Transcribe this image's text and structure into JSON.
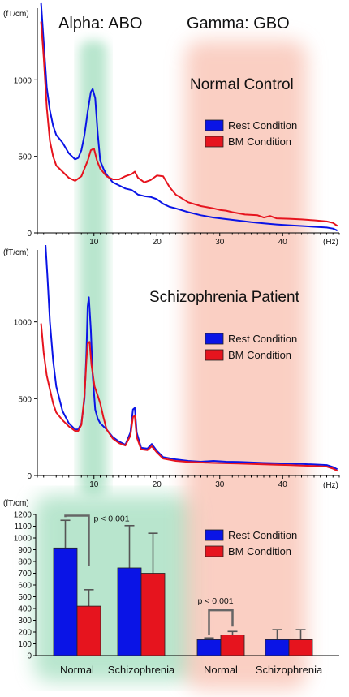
{
  "bands": {
    "alpha_label": "Alpha: ABO",
    "gamma_label": "Gamma: GBO",
    "alpha_color": "#7fd1a6",
    "gamma_color": "#f6a893",
    "alpha_hz": [
      7,
      11
    ],
    "gamma_hz": [
      24,
      45
    ]
  },
  "colors": {
    "rest": "#0a14e6",
    "bm": "#e6141e"
  },
  "chart_data": [
    {
      "type": "line",
      "title": "Normal Control",
      "ylabel": "(fT/cm)",
      "xlabel": "(Hz)",
      "xlim": [
        1,
        49
      ],
      "ylim": [
        0,
        1500
      ],
      "yticks": [
        0,
        500,
        1000
      ],
      "xticks": [
        10,
        20,
        30,
        40
      ],
      "legend": [
        "Rest Condition",
        "BM Condition"
      ],
      "legend_position": "right",
      "series": [
        {
          "name": "Rest Condition",
          "color": "#0a14e6",
          "points": [
            [
              1.6,
              1500
            ],
            [
              2,
              1250
            ],
            [
              2.5,
              950
            ],
            [
              3,
              800
            ],
            [
              3.5,
              700
            ],
            [
              4,
              640
            ],
            [
              5,
              590
            ],
            [
              6,
              520
            ],
            [
              7,
              480
            ],
            [
              7.5,
              490
            ],
            [
              8,
              540
            ],
            [
              8.5,
              640
            ],
            [
              9,
              790
            ],
            [
              9.5,
              920
            ],
            [
              9.8,
              940
            ],
            [
              10.2,
              880
            ],
            [
              10.6,
              650
            ],
            [
              11,
              470
            ],
            [
              11.5,
              420
            ],
            [
              12,
              380
            ],
            [
              13,
              330
            ],
            [
              14,
              310
            ],
            [
              15,
              290
            ],
            [
              16,
              280
            ],
            [
              17,
              250
            ],
            [
              18,
              240
            ],
            [
              19,
              235
            ],
            [
              20,
              220
            ],
            [
              21,
              190
            ],
            [
              22,
              170
            ],
            [
              23,
              160
            ],
            [
              25,
              135
            ],
            [
              27,
              115
            ],
            [
              29,
              100
            ],
            [
              31,
              90
            ],
            [
              33,
              80
            ],
            [
              35,
              70
            ],
            [
              37,
              62
            ],
            [
              39,
              55
            ],
            [
              41,
              50
            ],
            [
              43,
              45
            ],
            [
              45,
              40
            ],
            [
              47,
              35
            ],
            [
              48,
              28
            ],
            [
              48.7,
              15
            ]
          ]
        },
        {
          "name": "BM Condition",
          "color": "#e6141e",
          "points": [
            [
              1.6,
              1380
            ],
            [
              2,
              1150
            ],
            [
              2.5,
              820
            ],
            [
              3,
              600
            ],
            [
              3.5,
              500
            ],
            [
              4,
              440
            ],
            [
              5,
              400
            ],
            [
              6,
              360
            ],
            [
              7,
              340
            ],
            [
              8,
              370
            ],
            [
              8.5,
              420
            ],
            [
              9,
              470
            ],
            [
              9.5,
              540
            ],
            [
              10,
              550
            ],
            [
              10.5,
              470
            ],
            [
              11,
              420
            ],
            [
              12,
              370
            ],
            [
              13,
              350
            ],
            [
              14,
              350
            ],
            [
              15,
              370
            ],
            [
              16,
              385
            ],
            [
              16.5,
              400
            ],
            [
              17,
              360
            ],
            [
              18,
              330
            ],
            [
              19,
              345
            ],
            [
              20,
              375
            ],
            [
              21,
              370
            ],
            [
              22,
              300
            ],
            [
              23,
              250
            ],
            [
              25,
              200
            ],
            [
              27,
              175
            ],
            [
              29,
              160
            ],
            [
              30,
              150
            ],
            [
              31,
              145
            ],
            [
              32,
              135
            ],
            [
              34,
              120
            ],
            [
              36,
              115
            ],
            [
              37,
              100
            ],
            [
              38,
              110
            ],
            [
              39,
              95
            ],
            [
              41,
              92
            ],
            [
              43,
              88
            ],
            [
              45,
              82
            ],
            [
              47,
              75
            ],
            [
              48,
              65
            ],
            [
              48.7,
              45
            ]
          ]
        }
      ]
    },
    {
      "type": "line",
      "title": "Schizophrenia Patient",
      "ylabel": "(fT/cm)",
      "xlabel": "(Hz)",
      "xlim": [
        1,
        49
      ],
      "ylim": [
        0,
        1500
      ],
      "yticks": [
        0,
        500,
        1000
      ],
      "xticks": [
        10,
        20,
        30,
        40
      ],
      "legend": [
        "Rest Condition",
        "BM Condition"
      ],
      "legend_position": "right",
      "series": [
        {
          "name": "Rest Condition",
          "color": "#0a14e6",
          "points": [
            [
              2.3,
              1500
            ],
            [
              2.6,
              1300
            ],
            [
              3,
              1000
            ],
            [
              3.5,
              750
            ],
            [
              4,
              580
            ],
            [
              5,
              420
            ],
            [
              6,
              340
            ],
            [
              7,
              300
            ],
            [
              7.5,
              300
            ],
            [
              8,
              340
            ],
            [
              8.5,
              500
            ],
            [
              8.8,
              800
            ],
            [
              9,
              1100
            ],
            [
              9.2,
              1160
            ],
            [
              9.5,
              950
            ],
            [
              9.8,
              650
            ],
            [
              10.2,
              430
            ],
            [
              10.6,
              370
            ],
            [
              11,
              340
            ],
            [
              12,
              300
            ],
            [
              13,
              250
            ],
            [
              14,
              220
            ],
            [
              15,
              200
            ],
            [
              15.8,
              280
            ],
            [
              16.2,
              430
            ],
            [
              16.5,
              440
            ],
            [
              16.8,
              280
            ],
            [
              17.5,
              180
            ],
            [
              18.5,
              175
            ],
            [
              19.2,
              205
            ],
            [
              20,
              160
            ],
            [
              21,
              120
            ],
            [
              23,
              105
            ],
            [
              25,
              95
            ],
            [
              27,
              90
            ],
            [
              29,
              95
            ],
            [
              31,
              90
            ],
            [
              33,
              88
            ],
            [
              35,
              85
            ],
            [
              37,
              82
            ],
            [
              39,
              80
            ],
            [
              41,
              78
            ],
            [
              43,
              75
            ],
            [
              45,
              72
            ],
            [
              47,
              68
            ],
            [
              48,
              55
            ],
            [
              48.7,
              40
            ]
          ]
        },
        {
          "name": "BM Condition",
          "color": "#e6141e",
          "points": [
            [
              1.6,
              990
            ],
            [
              2,
              800
            ],
            [
              2.5,
              650
            ],
            [
              3,
              560
            ],
            [
              3.5,
              470
            ],
            [
              4,
              410
            ],
            [
              5,
              360
            ],
            [
              6,
              320
            ],
            [
              7,
              290
            ],
            [
              7.5,
              290
            ],
            [
              8,
              330
            ],
            [
              8.5,
              520
            ],
            [
              8.8,
              750
            ],
            [
              9,
              860
            ],
            [
              9.3,
              870
            ],
            [
              9.6,
              720
            ],
            [
              10.1,
              580
            ],
            [
              10.6,
              520
            ],
            [
              11,
              470
            ],
            [
              11.5,
              380
            ],
            [
              12,
              300
            ],
            [
              13,
              240
            ],
            [
              14,
              210
            ],
            [
              15,
              195
            ],
            [
              15.8,
              260
            ],
            [
              16.2,
              380
            ],
            [
              16.5,
              390
            ],
            [
              16.8,
              250
            ],
            [
              17.5,
              170
            ],
            [
              18.5,
              165
            ],
            [
              19.2,
              190
            ],
            [
              20,
              150
            ],
            [
              21,
              110
            ],
            [
              23,
              95
            ],
            [
              25,
              88
            ],
            [
              27,
              85
            ],
            [
              29,
              82
            ],
            [
              31,
              80
            ],
            [
              33,
              78
            ],
            [
              35,
              75
            ],
            [
              37,
              73
            ],
            [
              39,
              70
            ],
            [
              41,
              68
            ],
            [
              43,
              65
            ],
            [
              45,
              62
            ],
            [
              47,
              58
            ],
            [
              48,
              45
            ],
            [
              48.7,
              30
            ]
          ]
        }
      ]
    },
    {
      "type": "bar",
      "ylabel": "(fT/cm)",
      "ylim": [
        0,
        1200
      ],
      "yticks": [
        0,
        100,
        200,
        300,
        400,
        500,
        600,
        700,
        800,
        900,
        1000,
        1100,
        1200
      ],
      "categories": [
        "Normal",
        "Schizophrenia",
        "Normal",
        "Schizophrenia"
      ],
      "legend": [
        "Rest Condition",
        "BM Condition"
      ],
      "legend_position": "right",
      "series": [
        {
          "name": "Rest Condition",
          "color": "#0a14e6",
          "values": [
            915,
            745,
            135,
            135
          ],
          "errors": [
            235,
            360,
            15,
            85
          ]
        },
        {
          "name": "BM Condition",
          "color": "#e6141e",
          "values": [
            420,
            700,
            175,
            135
          ],
          "errors": [
            140,
            340,
            30,
            85
          ]
        }
      ],
      "annotations": [
        {
          "text": "p < 0.001",
          "group": 0
        },
        {
          "text": "p < 0.001",
          "group": 2
        }
      ]
    }
  ]
}
